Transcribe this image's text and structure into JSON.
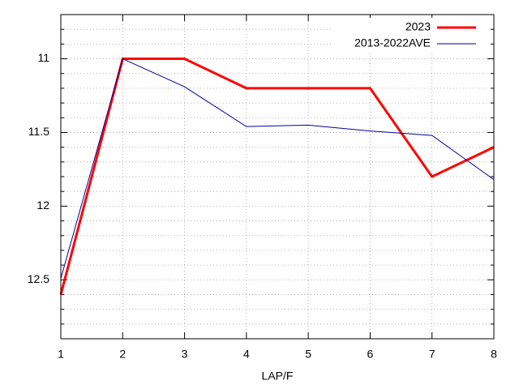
{
  "chart_data": {
    "type": "line",
    "xlabel": "LAP/F",
    "x": [
      1,
      2,
      3,
      4,
      5,
      6,
      7,
      8
    ],
    "xlim": [
      1,
      8
    ],
    "xticks": [
      1,
      2,
      3,
      4,
      5,
      6,
      7,
      8
    ],
    "ylim": [
      10.7,
      12.9
    ],
    "y_reversed": true,
    "yticks": [
      11,
      11.5,
      12,
      12.5
    ],
    "yminorticks": [
      10.8,
      10.9,
      11.1,
      11.2,
      11.3,
      11.4,
      11.6,
      11.7,
      11.8,
      11.9,
      12.1,
      12.2,
      12.3,
      12.4,
      12.6,
      12.7,
      12.8
    ],
    "grid": true,
    "legend": "top-right",
    "series": [
      {
        "name": "2023",
        "color": "#ff0000",
        "width": 3,
        "values": [
          12.6,
          11.0,
          11.0,
          11.2,
          11.2,
          11.2,
          11.8,
          11.6
        ]
      },
      {
        "name": "2013-2022AVE",
        "color": "#0000a0",
        "width": 1,
        "values": [
          12.49,
          11.0,
          11.19,
          11.46,
          11.45,
          11.49,
          11.52,
          11.82
        ]
      }
    ]
  }
}
